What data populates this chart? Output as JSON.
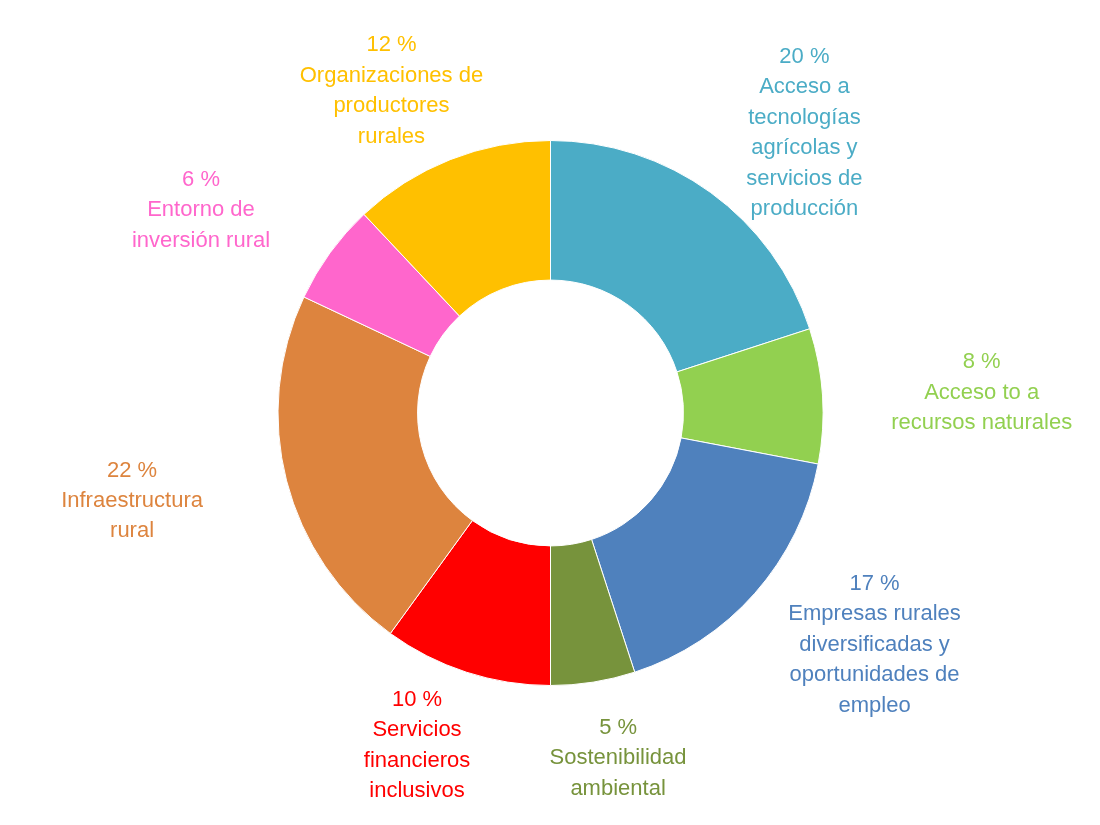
{
  "chart_data": {
    "type": "donut",
    "categories": [
      "Acceso a tecnologías agrícolas y servicios de producción",
      "Acceso to a recursos naturales",
      "Empresas rurales diversificadas y oportunidades de empleo",
      "Sostenibilidad ambiental",
      "Servicios financieros inclusivos",
      "Infraestructura rural",
      "Entorno de inversión rural",
      "Organizaciones de productores rurales"
    ],
    "values": [
      20,
      8,
      17,
      5,
      10,
      22,
      6,
      12
    ],
    "value_labels": [
      "20 %",
      "8 %",
      "17 %",
      "5 %",
      "10 %",
      "22 %",
      "6 %",
      "12 %"
    ],
    "colors": [
      "#4bacc6",
      "#92d050",
      "#4f81bd",
      "#77933c",
      "#ff0000",
      "#dd843e",
      "#ff66cc",
      "#ffc000"
    ],
    "legend": false
  }
}
